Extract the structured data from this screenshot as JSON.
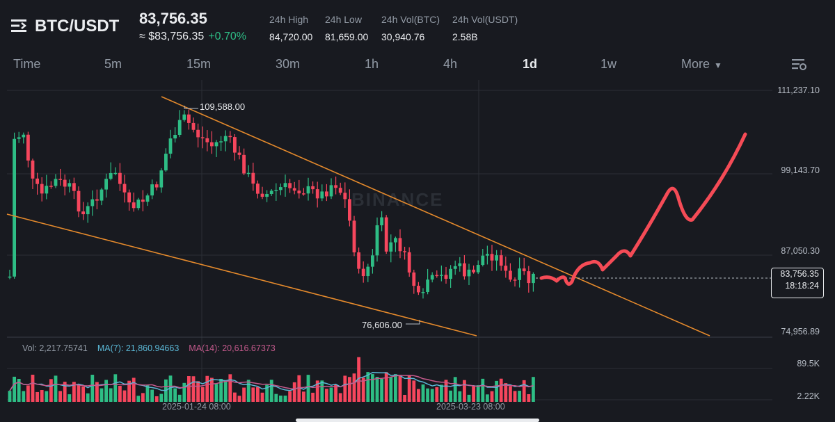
{
  "header": {
    "pair": "BTC/USDT",
    "last_price": "83,756.35",
    "fiat_price": "≈ $83,756.35",
    "change": "+0.70%",
    "stats": [
      {
        "label": "24h High",
        "value": "84,720.00"
      },
      {
        "label": "24h Low",
        "value": "81,659.00"
      },
      {
        "label": "24h Vol(BTC)",
        "value": "30,940.76"
      },
      {
        "label": "24h Vol(USDT)",
        "value": "2.58B"
      }
    ]
  },
  "tabs": {
    "items": [
      "Time",
      "5m",
      "15m",
      "30m",
      "1h",
      "4h",
      "1d",
      "1w"
    ],
    "active": "1d",
    "more_label": "More"
  },
  "chart": {
    "watermark": "BINANCE",
    "price_axis": [
      "111,237.10",
      "99,143.70",
      "87,050.30",
      "74,956.89"
    ],
    "high_marker": "109,588.00",
    "low_marker": "76,606.00",
    "current_price": "83,756.35",
    "countdown": "18:18:24",
    "volume": {
      "vol_label": "Vol: 2,217.75741",
      "ma7_label": "MA(7): 21,860.94663",
      "ma14_label": "MA(14): 20,616.67373",
      "axis": [
        "89.5K",
        "2.22K"
      ]
    },
    "dates": [
      "2025-01-24 08:00",
      "2025-03-23 08:00"
    ],
    "colors": {
      "up": "#2ebd85",
      "down": "#f6465d",
      "ma7": "#5bb8d6",
      "ma14": "#c45a8c",
      "trendline": "#e58a2c",
      "projection": "#f54b56"
    }
  }
}
